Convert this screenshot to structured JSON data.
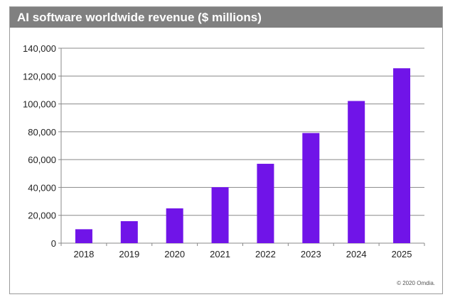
{
  "chart_data": {
    "type": "bar",
    "title": "AI software worldwide revenue ($ millions)",
    "categories": [
      "2018",
      "2019",
      "2020",
      "2021",
      "2022",
      "2023",
      "2024",
      "2025"
    ],
    "values": [
      10000,
      15800,
      25000,
      40200,
      57000,
      79100,
      102100,
      125600
    ],
    "ylim": [
      0,
      140000
    ],
    "yticks": [
      0,
      20000,
      40000,
      60000,
      80000,
      100000,
      120000,
      140000
    ],
    "ytick_labels": [
      "0",
      "20,000",
      "40,000",
      "60,000",
      "80,000",
      "100,000",
      "120,000",
      "140,000"
    ],
    "xlabel": "",
    "ylabel": "",
    "grid": "horizontal",
    "bar_color": "#7014e8",
    "title_bar_color": "#808080"
  },
  "footer": {
    "copyright": "© 2020 Omdia."
  }
}
